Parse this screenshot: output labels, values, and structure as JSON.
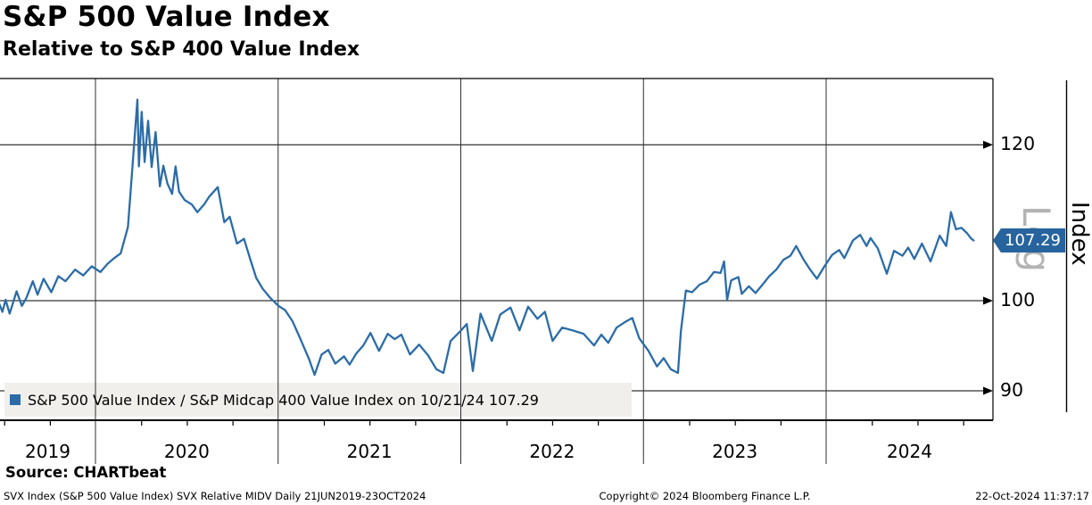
{
  "header": {
    "title": "S&P 500 Value Index",
    "subtitle": "Relative to S&P 400 Value Index"
  },
  "legend": {
    "text": "S&P 500 Value Index / S&P Midcap 400 Value Index on 10/21/24 107.29"
  },
  "right_axis": {
    "scale_label": "Log",
    "axis_title": "Index",
    "last_value_tag": "107.29"
  },
  "source_line": "Source: CHARTbeat",
  "footer": {
    "left": "SVX Index (S&P 500 Value Index) SVX Relative MIDV  Daily 21JUN2019-23OCT2024",
    "center": "Copyright© 2024 Bloomberg Finance L.P.",
    "right": "22-Oct-2024 11:37:17"
  },
  "colors": {
    "line": "#2b6ca8",
    "tag_bg": "#27649e",
    "grid": "#000000",
    "year_divider": "#2f2f2f",
    "legend_bg": "#f0efec",
    "log_label": "#b3b3b3"
  },
  "chart_data": {
    "type": "line",
    "title": "S&P 500 Value Index Relative to S&P 400 Value Index",
    "y_scale": "log",
    "y_ticks": [
      120,
      100,
      90
    ],
    "y_tick_labels": [
      "120",
      "100",
      "90"
    ],
    "x_tick_years": [
      "2019",
      "2020",
      "2021",
      "2022",
      "2023",
      "2024"
    ],
    "x_range": [
      "2019-06-21",
      "2024-10-23"
    ],
    "grid": "on",
    "legend_position": "bottom-left",
    "last_point": {
      "date": "10/21/24",
      "value": 107.29
    },
    "series": [
      {
        "name": "S&P 500 Value Index / S&P Midcap 400 Value Index",
        "color": "#2b6ca8",
        "points": [
          [
            "2019-06-21",
            99.6
          ],
          [
            "2019-06-27",
            98.7
          ],
          [
            "2019-07-03",
            100.1
          ],
          [
            "2019-07-11",
            98.5
          ],
          [
            "2019-07-25",
            101.1
          ],
          [
            "2019-08-05",
            99.4
          ],
          [
            "2019-08-14",
            100.3
          ],
          [
            "2019-08-27",
            102.3
          ],
          [
            "2019-09-06",
            100.7
          ],
          [
            "2019-09-18",
            102.6
          ],
          [
            "2019-10-03",
            101.0
          ],
          [
            "2019-10-17",
            102.9
          ],
          [
            "2019-11-01",
            102.3
          ],
          [
            "2019-11-20",
            103.7
          ],
          [
            "2019-12-06",
            103.0
          ],
          [
            "2019-12-23",
            104.1
          ],
          [
            "2020-01-10",
            103.4
          ],
          [
            "2020-01-24",
            104.4
          ],
          [
            "2020-02-07",
            105.1
          ],
          [
            "2020-02-20",
            105.7
          ],
          [
            "2020-03-04",
            109.0
          ],
          [
            "2020-03-12",
            116.0
          ],
          [
            "2020-03-23",
            126.5
          ],
          [
            "2020-03-26",
            117.0
          ],
          [
            "2020-04-01",
            124.7
          ],
          [
            "2020-04-07",
            117.6
          ],
          [
            "2020-04-14",
            123.4
          ],
          [
            "2020-04-21",
            116.9
          ],
          [
            "2020-04-29",
            121.8
          ],
          [
            "2020-05-07",
            114.3
          ],
          [
            "2020-05-14",
            117.1
          ],
          [
            "2020-05-22",
            114.7
          ],
          [
            "2020-06-01",
            113.3
          ],
          [
            "2020-06-08",
            117.0
          ],
          [
            "2020-06-15",
            113.6
          ],
          [
            "2020-06-26",
            112.5
          ],
          [
            "2020-07-10",
            111.9
          ],
          [
            "2020-07-21",
            110.9
          ],
          [
            "2020-08-04",
            111.9
          ],
          [
            "2020-08-14",
            112.9
          ],
          [
            "2020-09-01",
            114.2
          ],
          [
            "2020-09-14",
            109.6
          ],
          [
            "2020-09-25",
            110.3
          ],
          [
            "2020-10-09",
            106.9
          ],
          [
            "2020-10-23",
            107.5
          ],
          [
            "2020-11-06",
            104.8
          ],
          [
            "2020-11-17",
            102.7
          ],
          [
            "2020-11-30",
            101.4
          ],
          [
            "2020-12-15",
            100.3
          ],
          [
            "2020-12-31",
            99.4
          ],
          [
            "2021-01-14",
            98.9
          ],
          [
            "2021-01-29",
            97.6
          ],
          [
            "2021-02-12",
            95.9
          ],
          [
            "2021-03-01",
            93.4
          ],
          [
            "2021-03-12",
            91.7
          ],
          [
            "2021-03-26",
            93.9
          ],
          [
            "2021-04-09",
            94.4
          ],
          [
            "2021-04-23",
            92.9
          ],
          [
            "2021-05-10",
            93.7
          ],
          [
            "2021-05-21",
            92.8
          ],
          [
            "2021-06-04",
            94.0
          ],
          [
            "2021-06-18",
            94.9
          ],
          [
            "2021-07-02",
            96.3
          ],
          [
            "2021-07-19",
            94.3
          ],
          [
            "2021-08-06",
            96.2
          ],
          [
            "2021-08-20",
            95.6
          ],
          [
            "2021-09-03",
            96.1
          ],
          [
            "2021-09-20",
            93.9
          ],
          [
            "2021-10-08",
            95.0
          ],
          [
            "2021-10-26",
            93.8
          ],
          [
            "2021-11-12",
            92.3
          ],
          [
            "2021-11-26",
            91.9
          ],
          [
            "2021-12-10",
            95.4
          ],
          [
            "2021-12-28",
            96.4
          ],
          [
            "2022-01-12",
            97.3
          ],
          [
            "2022-01-24",
            92.1
          ],
          [
            "2022-02-09",
            98.5
          ],
          [
            "2022-03-01",
            95.4
          ],
          [
            "2022-03-18",
            98.4
          ],
          [
            "2022-04-08",
            99.2
          ],
          [
            "2022-04-26",
            96.6
          ],
          [
            "2022-05-13",
            99.3
          ],
          [
            "2022-06-01",
            97.9
          ],
          [
            "2022-06-16",
            98.7
          ],
          [
            "2022-07-01",
            95.4
          ],
          [
            "2022-07-20",
            96.9
          ],
          [
            "2022-08-10",
            96.6
          ],
          [
            "2022-09-02",
            96.2
          ],
          [
            "2022-09-23",
            94.9
          ],
          [
            "2022-10-07",
            96.1
          ],
          [
            "2022-10-21",
            95.2
          ],
          [
            "2022-11-07",
            96.9
          ],
          [
            "2022-11-23",
            97.5
          ],
          [
            "2022-12-08",
            98.0
          ],
          [
            "2022-12-22",
            95.7
          ],
          [
            "2023-01-10",
            94.3
          ],
          [
            "2023-01-27",
            92.6
          ],
          [
            "2023-02-10",
            93.5
          ],
          [
            "2023-02-24",
            92.3
          ],
          [
            "2023-03-08",
            91.9
          ],
          [
            "2023-03-14",
            96.5
          ],
          [
            "2023-03-24",
            101.2
          ],
          [
            "2023-04-06",
            101.0
          ],
          [
            "2023-04-21",
            101.9
          ],
          [
            "2023-05-05",
            102.3
          ],
          [
            "2023-05-19",
            103.4
          ],
          [
            "2023-06-02",
            103.3
          ],
          [
            "2023-06-09",
            104.7
          ],
          [
            "2023-06-15",
            100.1
          ],
          [
            "2023-06-23",
            102.4
          ],
          [
            "2023-07-07",
            102.8
          ],
          [
            "2023-07-14",
            100.8
          ],
          [
            "2023-07-28",
            101.7
          ],
          [
            "2023-08-11",
            100.9
          ],
          [
            "2023-08-25",
            101.9
          ],
          [
            "2023-09-08",
            102.9
          ],
          [
            "2023-09-22",
            103.7
          ],
          [
            "2023-10-06",
            104.9
          ],
          [
            "2023-10-20",
            105.4
          ],
          [
            "2023-11-01",
            106.6
          ],
          [
            "2023-11-15",
            105.0
          ],
          [
            "2023-11-29",
            103.7
          ],
          [
            "2023-12-12",
            102.6
          ],
          [
            "2023-12-27",
            104.1
          ],
          [
            "2024-01-12",
            105.5
          ],
          [
            "2024-01-26",
            106.1
          ],
          [
            "2024-02-06",
            105.1
          ],
          [
            "2024-02-23",
            107.3
          ],
          [
            "2024-03-07",
            108.0
          ],
          [
            "2024-03-20",
            106.6
          ],
          [
            "2024-03-28",
            107.6
          ],
          [
            "2024-04-12",
            106.3
          ],
          [
            "2024-04-30",
            103.2
          ],
          [
            "2024-05-14",
            106.0
          ],
          [
            "2024-05-31",
            105.4
          ],
          [
            "2024-06-12",
            106.4
          ],
          [
            "2024-06-24",
            105.0
          ],
          [
            "2024-07-09",
            106.9
          ],
          [
            "2024-07-26",
            104.7
          ],
          [
            "2024-08-14",
            107.9
          ],
          [
            "2024-08-27",
            106.6
          ],
          [
            "2024-09-06",
            110.9
          ],
          [
            "2024-09-16",
            108.7
          ],
          [
            "2024-09-27",
            108.9
          ],
          [
            "2024-10-08",
            108.2
          ],
          [
            "2024-10-15",
            107.6
          ],
          [
            "2024-10-21",
            107.29
          ]
        ]
      }
    ]
  }
}
